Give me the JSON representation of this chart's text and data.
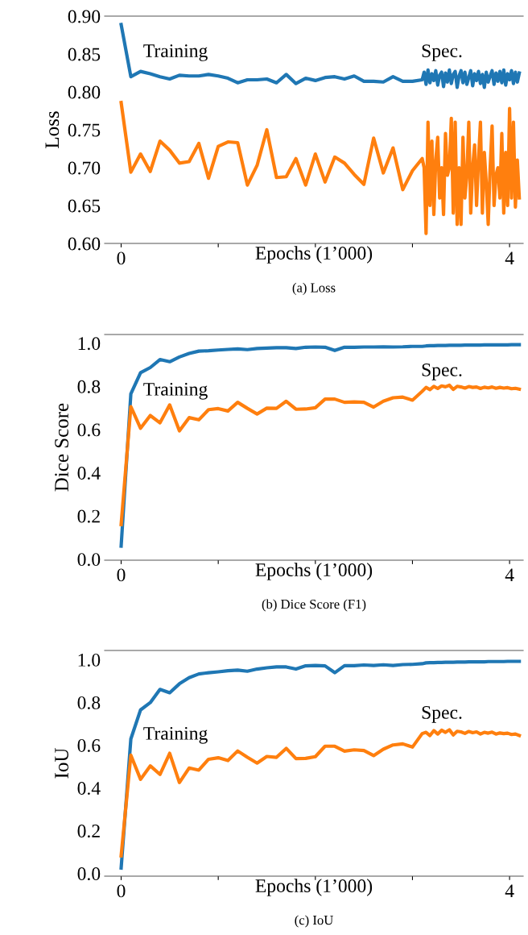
{
  "chart_data": [
    {
      "type": "line",
      "ylabel": "Loss",
      "xlabel": "Epochs (1’000)",
      "xlim": [
        -0.17,
        4.14
      ],
      "ylim": [
        0.6,
        0.9
      ],
      "xticks": [
        0,
        {
          "value": 1,
          "label": null
        },
        {
          "value": 2,
          "label": null
        },
        {
          "value": 3,
          "label": null
        },
        4
      ],
      "yticks": [
        {
          "value": 0.6,
          "label": "0.60"
        },
        {
          "value": 0.65,
          "label": "0.65"
        },
        {
          "value": 0.7,
          "label": "0.70"
        },
        {
          "value": 0.75,
          "label": "0.75"
        },
        {
          "value": 0.8,
          "label": "0.80"
        },
        {
          "value": 0.85,
          "label": "0.85"
        },
        {
          "value": 0.9,
          "label": "0.90"
        }
      ],
      "annotations": [
        "Training",
        "Spec.",
        "(a) Loss"
      ],
      "series": [
        {
          "color": "#1f77b4",
          "x": [
            0,
            0.1,
            0.2,
            0.3,
            0.4,
            0.5,
            0.6,
            0.7,
            0.8,
            0.9,
            1.0,
            1.1,
            1.2,
            1.3,
            1.4,
            1.5,
            1.6,
            1.7,
            1.8,
            1.9,
            2.0,
            2.1,
            2.2,
            2.3,
            2.4,
            2.5,
            2.6,
            2.7,
            2.8,
            2.9,
            3.0,
            3.1,
            3.12,
            3.14,
            3.16,
            3.18,
            3.2,
            3.22,
            3.24,
            3.26,
            3.28,
            3.3,
            3.32,
            3.34,
            3.36,
            3.38,
            3.4,
            3.42,
            3.44,
            3.46,
            3.48,
            3.5,
            3.52,
            3.54,
            3.56,
            3.58,
            3.6,
            3.62,
            3.64,
            3.66,
            3.68,
            3.7,
            3.72,
            3.74,
            3.76,
            3.78,
            3.8,
            3.82,
            3.84,
            3.86,
            3.88,
            3.9,
            3.92,
            3.94,
            3.96,
            3.98,
            4.0,
            4.02,
            4.04,
            4.06,
            4.08,
            4.1
          ],
          "values": [
            0.889,
            0.82,
            0.827,
            0.824,
            0.82,
            0.817,
            0.822,
            0.821,
            0.821,
            0.823,
            0.821,
            0.818,
            0.812,
            0.816,
            0.816,
            0.817,
            0.812,
            0.823,
            0.811,
            0.818,
            0.815,
            0.819,
            0.82,
            0.817,
            0.821,
            0.814,
            0.814,
            0.813,
            0.82,
            0.814,
            0.814,
            0.816,
            0.826,
            0.81,
            0.829,
            0.812,
            0.824,
            0.815,
            0.828,
            0.809,
            0.822,
            0.826,
            0.807,
            0.825,
            0.813,
            0.829,
            0.811,
            0.823,
            0.827,
            0.806,
            0.821,
            0.828,
            0.812,
            0.826,
            0.81,
            0.819,
            0.828,
            0.808,
            0.824,
            0.815,
            0.827,
            0.811,
            0.823,
            0.806,
            0.826,
            0.813,
            0.821,
            0.828,
            0.81,
            0.825,
            0.814,
            0.827,
            0.812,
            0.829,
            0.809,
            0.824,
            0.816,
            0.828,
            0.811,
            0.826,
            0.813,
            0.825
          ]
        },
        {
          "color": "#ff7f0e",
          "x": [
            0,
            0.1,
            0.2,
            0.3,
            0.4,
            0.5,
            0.6,
            0.7,
            0.8,
            0.9,
            1.0,
            1.1,
            1.2,
            1.3,
            1.4,
            1.5,
            1.6,
            1.7,
            1.8,
            1.9,
            2.0,
            2.1,
            2.2,
            2.3,
            2.4,
            2.5,
            2.6,
            2.7,
            2.8,
            2.9,
            3.0,
            3.1,
            3.12,
            3.14,
            3.16,
            3.18,
            3.2,
            3.22,
            3.24,
            3.26,
            3.28,
            3.3,
            3.32,
            3.34,
            3.36,
            3.38,
            3.4,
            3.42,
            3.44,
            3.46,
            3.48,
            3.5,
            3.52,
            3.54,
            3.56,
            3.58,
            3.6,
            3.62,
            3.64,
            3.66,
            3.68,
            3.7,
            3.72,
            3.74,
            3.76,
            3.78,
            3.8,
            3.82,
            3.84,
            3.86,
            3.88,
            3.9,
            3.92,
            3.94,
            3.96,
            3.98,
            4.0,
            4.02,
            4.04,
            4.06,
            4.08,
            4.1
          ],
          "values": [
            0.786,
            0.694,
            0.718,
            0.695,
            0.735,
            0.723,
            0.706,
            0.708,
            0.732,
            0.686,
            0.728,
            0.734,
            0.733,
            0.677,
            0.703,
            0.75,
            0.687,
            0.688,
            0.712,
            0.677,
            0.718,
            0.681,
            0.714,
            0.706,
            0.691,
            0.678,
            0.739,
            0.693,
            0.726,
            0.671,
            0.696,
            0.712,
            0.7,
            0.613,
            0.76,
            0.65,
            0.735,
            0.638,
            0.71,
            0.74,
            0.66,
            0.7,
            0.638,
            0.745,
            0.69,
            0.7,
            0.765,
            0.64,
            0.76,
            0.625,
            0.7,
            0.625,
            0.74,
            0.66,
            0.69,
            0.76,
            0.64,
            0.7,
            0.73,
            0.65,
            0.71,
            0.76,
            0.64,
            0.72,
            0.68,
            0.625,
            0.7,
            0.755,
            0.65,
            0.69,
            0.7,
            0.66,
            0.745,
            0.64,
            0.72,
            0.65,
            0.778,
            0.66,
            0.76,
            0.648,
            0.71,
            0.66
          ]
        }
      ]
    },
    {
      "type": "line",
      "ylabel": "Dice Score",
      "xlabel": "Epochs (1’000)",
      "xlim": [
        -0.17,
        4.14
      ],
      "ylim": [
        -0.005,
        1.04
      ],
      "xticks": [
        0,
        {
          "value": 1,
          "label": null
        },
        {
          "value": 2,
          "label": null
        },
        {
          "value": 3,
          "label": null
        },
        4
      ],
      "yticks": [
        {
          "value": 0,
          "label": "0.0"
        },
        {
          "value": 0.2,
          "label": "0.2"
        },
        {
          "value": 0.4,
          "label": "0.4"
        },
        {
          "value": 0.6,
          "label": "0.6"
        },
        {
          "value": 0.8,
          "label": "0.8"
        },
        {
          "value": 1,
          "label": "1.0"
        }
      ],
      "annotations": [
        "Training",
        "Spec.",
        "(b) Dice Score (F1)"
      ],
      "series": [
        {
          "color": "#1f77b4",
          "x": [
            0,
            0.1,
            0.2,
            0.3,
            0.4,
            0.5,
            0.6,
            0.7,
            0.8,
            0.9,
            1.0,
            1.1,
            1.2,
            1.3,
            1.4,
            1.5,
            1.6,
            1.7,
            1.8,
            1.9,
            2.0,
            2.1,
            2.2,
            2.3,
            2.4,
            2.5,
            2.6,
            2.7,
            2.8,
            2.9,
            3.0,
            3.1,
            3.14,
            3.18,
            3.22,
            3.26,
            3.3,
            3.34,
            3.38,
            3.42,
            3.46,
            3.5,
            3.54,
            3.58,
            3.62,
            3.66,
            3.7,
            3.74,
            3.78,
            3.82,
            3.86,
            3.9,
            3.94,
            3.98,
            4.02,
            4.06,
            4.1
          ],
          "values": [
            0.06,
            0.765,
            0.863,
            0.887,
            0.924,
            0.914,
            0.936,
            0.952,
            0.963,
            0.965,
            0.968,
            0.971,
            0.973,
            0.97,
            0.975,
            0.977,
            0.979,
            0.979,
            0.975,
            0.981,
            0.982,
            0.981,
            0.966,
            0.981,
            0.981,
            0.982,
            0.982,
            0.983,
            0.982,
            0.983,
            0.985,
            0.985,
            0.987,
            0.988,
            0.988,
            0.989,
            0.989,
            0.989,
            0.99,
            0.99,
            0.99,
            0.99,
            0.991,
            0.991,
            0.991,
            0.991,
            0.991,
            0.992,
            0.992,
            0.992,
            0.992,
            0.992,
            0.992,
            0.992,
            0.993,
            0.993,
            0.993
          ]
        },
        {
          "color": "#ff7f0e",
          "x": [
            0,
            0.1,
            0.2,
            0.3,
            0.4,
            0.5,
            0.6,
            0.7,
            0.8,
            0.9,
            1.0,
            1.1,
            1.2,
            1.3,
            1.4,
            1.5,
            1.6,
            1.7,
            1.8,
            1.9,
            2.0,
            2.1,
            2.2,
            2.3,
            2.4,
            2.5,
            2.6,
            2.7,
            2.8,
            2.9,
            3.0,
            3.1,
            3.14,
            3.18,
            3.22,
            3.26,
            3.3,
            3.34,
            3.38,
            3.42,
            3.46,
            3.5,
            3.54,
            3.58,
            3.62,
            3.66,
            3.7,
            3.74,
            3.78,
            3.82,
            3.86,
            3.9,
            3.94,
            3.98,
            4.02,
            4.06,
            4.1
          ],
          "values": [
            0.16,
            0.706,
            0.606,
            0.665,
            0.631,
            0.714,
            0.594,
            0.655,
            0.645,
            0.692,
            0.697,
            0.686,
            0.726,
            0.698,
            0.672,
            0.699,
            0.698,
            0.731,
            0.694,
            0.695,
            0.701,
            0.741,
            0.741,
            0.726,
            0.728,
            0.726,
            0.704,
            0.731,
            0.747,
            0.75,
            0.736,
            0.777,
            0.795,
            0.785,
            0.8,
            0.79,
            0.802,
            0.798,
            0.805,
            0.786,
            0.8,
            0.797,
            0.792,
            0.799,
            0.795,
            0.797,
            0.79,
            0.796,
            0.793,
            0.797,
            0.791,
            0.795,
            0.792,
            0.794,
            0.789,
            0.791,
            0.787
          ]
        }
      ]
    },
    {
      "type": "line",
      "ylabel": "IoU",
      "xlabel": "Epochs (1’000)",
      "xlim": [
        -0.17,
        4.14
      ],
      "ylim": [
        -0.013,
        1.043
      ],
      "xticks": [
        0,
        {
          "value": 1,
          "label": null
        },
        {
          "value": 2,
          "label": null
        },
        {
          "value": 3,
          "label": null
        },
        4
      ],
      "yticks": [
        {
          "value": 0,
          "label": "0.0"
        },
        {
          "value": 0.2,
          "label": "0.2"
        },
        {
          "value": 0.4,
          "label": "0.4"
        },
        {
          "value": 0.6,
          "label": "0.6"
        },
        {
          "value": 0.8,
          "label": "0.8"
        },
        {
          "value": 1,
          "label": "1.0"
        }
      ],
      "annotations": [
        "Training",
        "Spec.",
        "(c) IoU"
      ],
      "series": [
        {
          "color": "#1f77b4",
          "x": [
            0,
            0.1,
            0.2,
            0.3,
            0.4,
            0.5,
            0.6,
            0.7,
            0.8,
            0.9,
            1.0,
            1.1,
            1.2,
            1.3,
            1.4,
            1.5,
            1.6,
            1.7,
            1.8,
            1.9,
            2.0,
            2.1,
            2.2,
            2.3,
            2.4,
            2.5,
            2.6,
            2.7,
            2.8,
            2.9,
            3.0,
            3.1,
            3.14,
            3.18,
            3.22,
            3.26,
            3.3,
            3.34,
            3.38,
            3.42,
            3.46,
            3.5,
            3.54,
            3.58,
            3.62,
            3.66,
            3.7,
            3.74,
            3.78,
            3.82,
            3.86,
            3.9,
            3.94,
            3.98,
            4.02,
            4.06,
            4.1
          ],
          "values": [
            0.025,
            0.629,
            0.765,
            0.799,
            0.861,
            0.845,
            0.887,
            0.916,
            0.933,
            0.939,
            0.943,
            0.948,
            0.951,
            0.946,
            0.956,
            0.962,
            0.966,
            0.966,
            0.956,
            0.971,
            0.973,
            0.971,
            0.939,
            0.972,
            0.972,
            0.975,
            0.973,
            0.976,
            0.973,
            0.977,
            0.978,
            0.981,
            0.985,
            0.986,
            0.986,
            0.987,
            0.987,
            0.988,
            0.988,
            0.988,
            0.989,
            0.989,
            0.989,
            0.99,
            0.99,
            0.99,
            0.99,
            0.99,
            0.991,
            0.991,
            0.991,
            0.991,
            0.991,
            0.992,
            0.992,
            0.992,
            0.992
          ]
        },
        {
          "color": "#ff7f0e",
          "x": [
            0,
            0.1,
            0.2,
            0.3,
            0.4,
            0.5,
            0.6,
            0.7,
            0.8,
            0.9,
            1.0,
            1.1,
            1.2,
            1.3,
            1.4,
            1.5,
            1.6,
            1.7,
            1.8,
            1.9,
            2.0,
            2.1,
            2.2,
            2.3,
            2.4,
            2.5,
            2.6,
            2.7,
            2.8,
            2.9,
            3.0,
            3.1,
            3.14,
            3.18,
            3.22,
            3.26,
            3.3,
            3.34,
            3.38,
            3.42,
            3.46,
            3.5,
            3.54,
            3.58,
            3.62,
            3.66,
            3.7,
            3.74,
            3.78,
            3.82,
            3.86,
            3.9,
            3.94,
            3.98,
            4.02,
            4.06,
            4.1
          ],
          "values": [
            0.082,
            0.553,
            0.44,
            0.503,
            0.463,
            0.562,
            0.425,
            0.493,
            0.483,
            0.534,
            0.541,
            0.528,
            0.573,
            0.543,
            0.516,
            0.547,
            0.543,
            0.585,
            0.537,
            0.538,
            0.546,
            0.595,
            0.595,
            0.572,
            0.578,
            0.575,
            0.551,
            0.581,
            0.601,
            0.606,
            0.591,
            0.654,
            0.66,
            0.645,
            0.668,
            0.652,
            0.67,
            0.66,
            0.672,
            0.648,
            0.665,
            0.662,
            0.655,
            0.664,
            0.658,
            0.662,
            0.652,
            0.66,
            0.656,
            0.661,
            0.652,
            0.657,
            0.654,
            0.656,
            0.65,
            0.652,
            0.645
          ]
        }
      ]
    }
  ]
}
